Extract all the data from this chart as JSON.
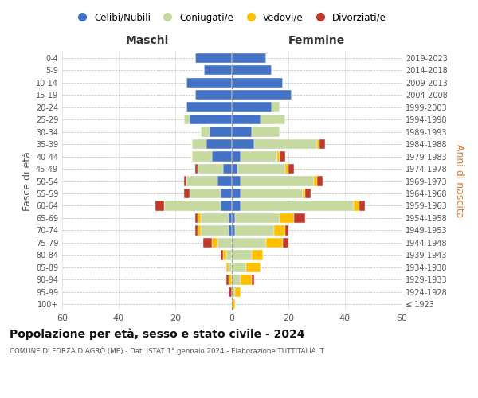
{
  "age_groups": [
    "100+",
    "95-99",
    "90-94",
    "85-89",
    "80-84",
    "75-79",
    "70-74",
    "65-69",
    "60-64",
    "55-59",
    "50-54",
    "45-49",
    "40-44",
    "35-39",
    "30-34",
    "25-29",
    "20-24",
    "15-19",
    "10-14",
    "5-9",
    "0-4"
  ],
  "birth_years": [
    "≤ 1923",
    "1924-1928",
    "1929-1933",
    "1934-1938",
    "1939-1943",
    "1944-1948",
    "1949-1953",
    "1954-1958",
    "1959-1963",
    "1964-1968",
    "1969-1973",
    "1974-1978",
    "1979-1983",
    "1984-1988",
    "1989-1993",
    "1994-1998",
    "1999-2003",
    "2004-2008",
    "2009-2013",
    "2014-2018",
    "2019-2023"
  ],
  "colors": {
    "celibi": "#4472c4",
    "coniugati": "#c5d9a0",
    "vedovi": "#ffc000",
    "divorziati": "#c0392b"
  },
  "maschi": {
    "celibi": [
      0,
      0,
      0,
      0,
      0,
      0,
      1,
      1,
      4,
      4,
      5,
      3,
      7,
      9,
      8,
      15,
      16,
      13,
      16,
      10,
      13
    ],
    "coniugati": [
      0,
      0,
      0,
      1,
      2,
      5,
      10,
      10,
      20,
      11,
      11,
      9,
      7,
      5,
      3,
      2,
      0,
      0,
      0,
      0,
      0
    ],
    "vedovi": [
      0,
      0,
      1,
      1,
      1,
      2,
      1,
      1,
      0,
      0,
      0,
      0,
      0,
      0,
      0,
      0,
      0,
      0,
      0,
      0,
      0
    ],
    "divorziati": [
      0,
      1,
      1,
      0,
      1,
      3,
      1,
      1,
      3,
      2,
      1,
      1,
      0,
      0,
      0,
      0,
      0,
      0,
      0,
      0,
      0
    ]
  },
  "femmine": {
    "celibi": [
      0,
      0,
      0,
      0,
      0,
      0,
      1,
      1,
      3,
      3,
      3,
      2,
      3,
      8,
      7,
      10,
      14,
      21,
      18,
      14,
      12
    ],
    "coniugati": [
      0,
      1,
      3,
      5,
      7,
      12,
      14,
      16,
      40,
      22,
      26,
      17,
      13,
      22,
      10,
      9,
      3,
      0,
      0,
      0,
      0
    ],
    "vedovi": [
      1,
      2,
      4,
      5,
      4,
      6,
      4,
      5,
      2,
      1,
      1,
      1,
      1,
      1,
      0,
      0,
      0,
      0,
      0,
      0,
      0
    ],
    "divorziati": [
      0,
      0,
      1,
      0,
      0,
      2,
      1,
      4,
      2,
      2,
      2,
      2,
      2,
      2,
      0,
      0,
      0,
      0,
      0,
      0,
      0
    ]
  },
  "title": "Popolazione per età, sesso e stato civile - 2024",
  "subtitle": "COMUNE DI FORZA D’AGRÒ (ME) - Dati ISTAT 1° gennaio 2024 - Elaborazione TUTTITALIA.IT",
  "xlabel_left": "Maschi",
  "xlabel_right": "Femmine",
  "ylabel_left": "Fasce di età",
  "ylabel_right": "Anni di nascita",
  "xlim": 60,
  "legend_labels": [
    "Celibi/Nubili",
    "Coniugati/e",
    "Vedovi/e",
    "Divorziati/e"
  ],
  "background_color": "#ffffff",
  "bar_height": 0.8
}
